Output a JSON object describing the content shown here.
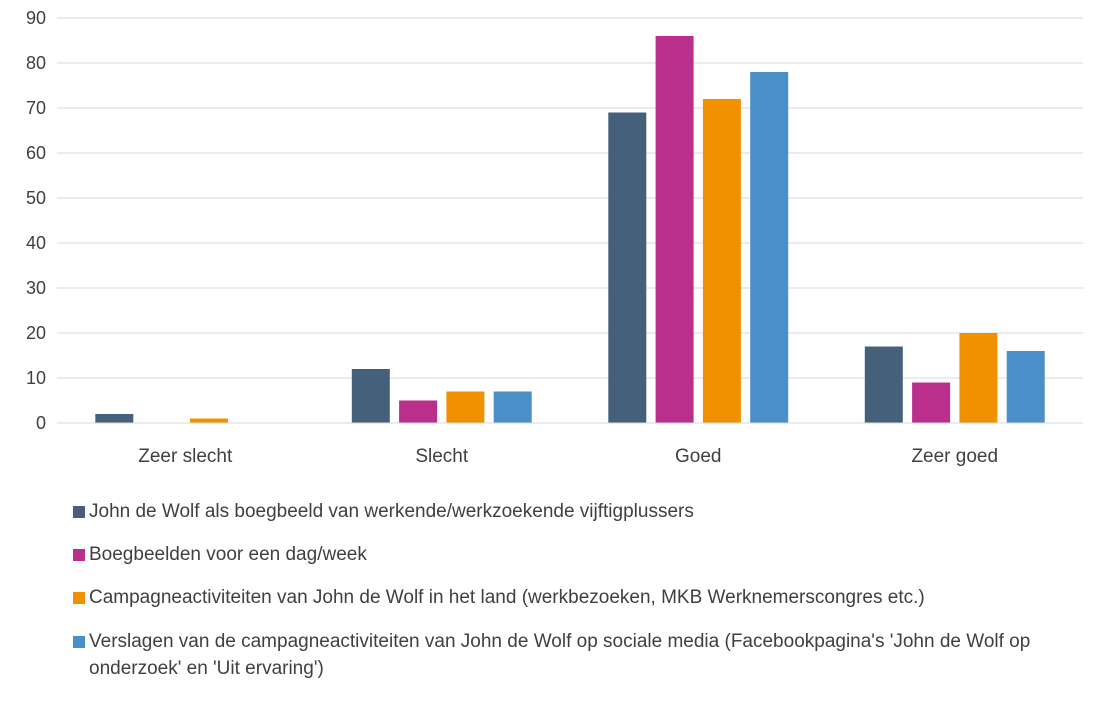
{
  "chart_data": {
    "type": "bar",
    "categories": [
      "Zeer slecht",
      "Slecht",
      "Goed",
      "Zeer goed"
    ],
    "series": [
      {
        "name": "John de Wolf als boegbeeld van werkende/werkzoekende vijftigplussers",
        "color": "#44607a",
        "values": [
          2,
          12,
          69,
          17
        ]
      },
      {
        "name": "Boegbeelden voor een dag/week",
        "color": "#bb2f8c",
        "values": [
          0,
          5,
          86,
          9
        ]
      },
      {
        "name": "Campagneactiviteiten van John de Wolf in het land (werkbezoeken, MKB Werknemerscongres etc.)",
        "color": "#f29100",
        "values": [
          1,
          7,
          72,
          20
        ]
      },
      {
        "name": "Verslagen van de campagneactiviteiten van John de Wolf op sociale media (Facebookpagina's 'John de Wolf op onderzoek' en 'Uit ervaring')",
        "color": "#4a8fc8",
        "values": [
          0,
          7,
          78,
          16
        ]
      }
    ],
    "ylim": [
      0,
      90
    ],
    "yticks": [
      0,
      10,
      20,
      30,
      40,
      50,
      60,
      70,
      80,
      90
    ],
    "grid": true,
    "legend_position": "bottom",
    "title": "",
    "xlabel": "",
    "ylabel": ""
  }
}
